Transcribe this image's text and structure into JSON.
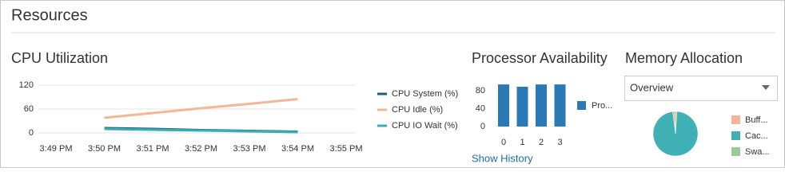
{
  "header": {
    "title": "Resources"
  },
  "chart_data": [
    {
      "type": "line",
      "title": "CPU Utilization",
      "categories": [
        "3:49 PM",
        "3:50 PM",
        "3:51 PM",
        "3:52 PM",
        "3:53 PM",
        "3:54 PM",
        "3:55 PM"
      ],
      "series": [
        {
          "name": "CPU System (%)",
          "color": "#1f5f7e",
          "values": [
            null,
            12,
            10,
            7,
            5,
            3,
            null
          ]
        },
        {
          "name": "CPU Idle (%)",
          "color": "#f2b896",
          "values": [
            null,
            38,
            50,
            62,
            73,
            85,
            null
          ]
        },
        {
          "name": "CPU IO Wait (%)",
          "color": "#3aacb4",
          "values": [
            null,
            10,
            8,
            6,
            4,
            2,
            null
          ]
        }
      ],
      "ylim": [
        0,
        120
      ],
      "yticks": [
        0,
        60,
        120
      ],
      "grid": true
    },
    {
      "type": "bar",
      "title": "Processor Availability",
      "categories": [
        "0",
        "1",
        "2",
        "3"
      ],
      "series": [
        {
          "name": "Pro...",
          "color": "#2a78b6",
          "values": [
            94,
            89,
            94,
            94
          ]
        }
      ],
      "ylim": [
        0,
        100
      ],
      "yticks": [
        0,
        40,
        80
      ],
      "grid": false
    },
    {
      "type": "pie",
      "title": "Memory Allocation",
      "categories": [
        "Buff...",
        "Cac...",
        "Swa..."
      ],
      "values": [
        2,
        97,
        1
      ],
      "colors": [
        "#f2b49a",
        "#3fb0b5",
        "#9bc99a"
      ]
    }
  ],
  "memory_selector": {
    "value": "Overview"
  },
  "processor_link": {
    "label": "Show History"
  }
}
